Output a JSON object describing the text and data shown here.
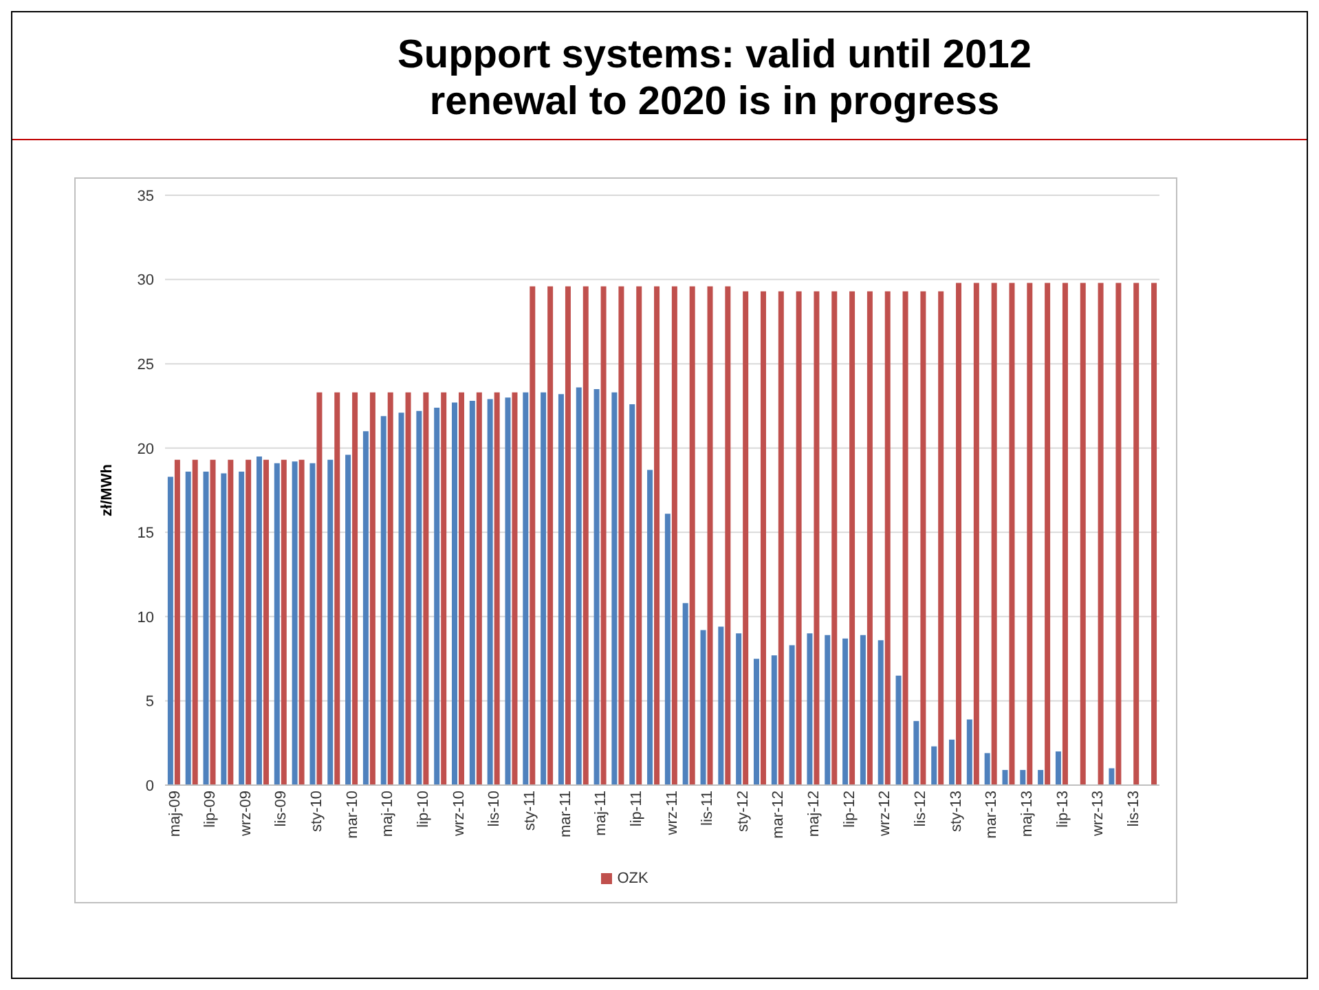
{
  "chart_data": {
    "type": "bar",
    "title": "Support systems: valid until 2012\nrenewal to 2020 is in progress",
    "ylabel": "zł/MWh",
    "categories": [
      "maj-09",
      null,
      "lip-09",
      null,
      "wrz-09",
      null,
      "lis-09",
      null,
      "sty-10",
      null,
      "mar-10",
      null,
      "maj-10",
      null,
      "lip-10",
      null,
      "wrz-10",
      null,
      "lis-10",
      null,
      "sty-11",
      null,
      "mar-11",
      null,
      "maj-11",
      null,
      "lip-11",
      null,
      "wrz-11",
      null,
      "lis-11",
      null,
      "sty-12",
      null,
      "mar-12",
      null,
      "maj-12",
      null,
      "lip-12",
      null,
      "wrz-12",
      null,
      "lis-12",
      null,
      "sty-13",
      null,
      "mar-13",
      null,
      "maj-13",
      null,
      "lip-13",
      null,
      "wrz-13",
      null,
      "lis-13",
      null
    ],
    "series": [
      {
        "color": "#4f81bd",
        "values": [
          18.3,
          18.6,
          18.6,
          18.5,
          18.6,
          19.5,
          19.1,
          19.2,
          19.1,
          19.3,
          19.6,
          21.0,
          21.9,
          22.1,
          22.2,
          22.4,
          22.7,
          22.8,
          22.9,
          23.0,
          23.3,
          23.3,
          23.2,
          23.6,
          23.5,
          23.3,
          22.6,
          18.7,
          16.1,
          10.8,
          9.2,
          9.4,
          9.0,
          7.5,
          7.7,
          8.3,
          9.0,
          8.9,
          8.7,
          8.9,
          8.6,
          6.5,
          3.8,
          2.3,
          2.7,
          3.9,
          1.9,
          0.9,
          0.9,
          0.9,
          2.0,
          null,
          null,
          1.0,
          null,
          null
        ]
      },
      {
        "name": "OZK",
        "color": "#c0504d",
        "values": [
          19.3,
          19.3,
          19.3,
          19.3,
          19.3,
          19.3,
          19.3,
          19.3,
          23.3,
          23.3,
          23.3,
          23.3,
          23.3,
          23.3,
          23.3,
          23.3,
          23.3,
          23.3,
          23.3,
          23.3,
          29.6,
          29.6,
          29.6,
          29.6,
          29.6,
          29.6,
          29.6,
          29.6,
          29.6,
          29.6,
          29.6,
          29.6,
          29.3,
          29.3,
          29.3,
          29.3,
          29.3,
          29.3,
          29.3,
          29.3,
          29.3,
          29.3,
          29.3,
          29.3,
          29.8,
          29.8,
          29.8,
          29.8,
          29.8,
          29.8,
          29.8,
          29.8,
          29.8,
          29.8,
          29.8,
          29.8
        ]
      }
    ],
    "ylim": [
      0,
      35
    ],
    "yticks": [
      0,
      5,
      10,
      15,
      20,
      25,
      30,
      35
    ],
    "grid": "y",
    "legend": "bottom"
  }
}
